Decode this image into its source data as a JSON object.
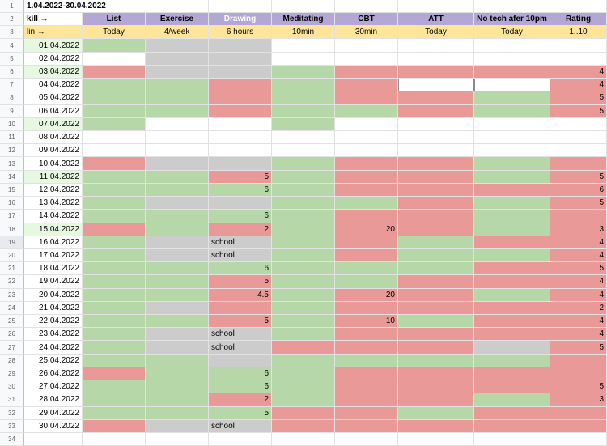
{
  "sheet": {
    "title": "1.04.2022-30.04.2022",
    "header_row": [
      "kill →",
      "List",
      "Exercise",
      "Drawing",
      "Meditating",
      "CBT",
      "ATT",
      "No tech afer 10pm",
      "Rating"
    ],
    "plan_row": [
      "lin →",
      "Today",
      "4/week",
      "6 hours",
      "10min",
      "30min",
      "Today",
      "Today",
      "1..10"
    ],
    "row_numbers": [
      "1",
      "2",
      "3",
      "4",
      "5",
      "6",
      "7",
      "8",
      "9",
      "10",
      "11",
      "12",
      "13",
      "14",
      "15",
      "16",
      "17",
      "18",
      "19",
      "20",
      "21",
      "22",
      "23",
      "24",
      "25",
      "26",
      "27",
      "28",
      "29",
      "30",
      "31",
      "32",
      "33",
      "34"
    ],
    "colors": {
      "green": "#b6d7a8",
      "red": "#ea9999",
      "gray": "#cccccc",
      "header_purple": "#b4a7d6",
      "plan_yellow": "#ffe599",
      "date_highlight": "#e6f8e0"
    },
    "rows": [
      {
        "date": "01.04.2022",
        "cells": [
          "G",
          "Y",
          "Y",
          "W",
          "W",
          "W",
          "W",
          "W"
        ],
        "values": [
          "",
          "",
          "",
          "",
          "",
          "",
          "",
          ""
        ]
      },
      {
        "date": "02.04.2022",
        "cells": [
          "W",
          "Y",
          "Y",
          "W",
          "W",
          "W",
          "W",
          "W"
        ],
        "values": [
          "",
          "",
          "",
          "",
          "",
          "",
          "",
          ""
        ]
      },
      {
        "date": "03.04.2022",
        "cells": [
          "R",
          "Y",
          "Y",
          "G",
          "R",
          "R",
          "R",
          "R"
        ],
        "values": [
          "",
          "",
          "",
          "",
          "",
          "",
          "",
          "4"
        ]
      },
      {
        "date": "04.04.2022",
        "cells": [
          "G",
          "G",
          "R",
          "G",
          "R",
          "W",
          "W",
          "R"
        ],
        "values": [
          "",
          "",
          "",
          "",
          "",
          "",
          "",
          "4"
        ]
      },
      {
        "date": "05.04.2022",
        "cells": [
          "G",
          "G",
          "R",
          "G",
          "R",
          "R",
          "G",
          "R"
        ],
        "values": [
          "",
          "",
          "",
          "",
          "",
          "",
          "",
          "5"
        ]
      },
      {
        "date": "06.04.2022",
        "cells": [
          "G",
          "G",
          "R",
          "G",
          "G",
          "R",
          "G",
          "R"
        ],
        "values": [
          "",
          "",
          "",
          "",
          "",
          "",
          "",
          "5"
        ]
      },
      {
        "date": "07.04.2022",
        "cells": [
          "G",
          "W",
          "W",
          "G",
          "W",
          "W",
          "W",
          "W"
        ],
        "values": [
          "",
          "",
          "",
          "",
          "",
          "",
          "",
          ""
        ]
      },
      {
        "date": "08.04.2022",
        "cells": [
          "W",
          "W",
          "W",
          "W",
          "W",
          "W",
          "W",
          "W"
        ],
        "values": [
          "",
          "",
          "",
          "",
          "",
          "",
          "",
          ""
        ]
      },
      {
        "date": "09.04.2022",
        "cells": [
          "W",
          "W",
          "W",
          "W",
          "W",
          "W",
          "W",
          "W"
        ],
        "values": [
          "",
          "",
          "",
          "",
          "",
          "",
          "",
          ""
        ]
      },
      {
        "date": "10.04.2022",
        "cells": [
          "R",
          "Y",
          "Y",
          "G",
          "R",
          "R",
          "G",
          "R"
        ],
        "values": [
          "",
          "",
          "",
          "",
          "",
          "",
          "",
          ""
        ]
      },
      {
        "date": "11.04.2022",
        "cells": [
          "G",
          "G",
          "R",
          "G",
          "R",
          "R",
          "G",
          "R"
        ],
        "values": [
          "",
          "",
          "5",
          "",
          "",
          "",
          "",
          "5"
        ]
      },
      {
        "date": "12.04.2022",
        "cells": [
          "G",
          "G",
          "G",
          "G",
          "R",
          "R",
          "R",
          "R"
        ],
        "values": [
          "",
          "",
          "6",
          "",
          "",
          "",
          "",
          "6"
        ]
      },
      {
        "date": "13.04.2022",
        "cells": [
          "G",
          "Y",
          "Y",
          "G",
          "G",
          "R",
          "G",
          "R"
        ],
        "values": [
          "",
          "",
          "",
          "",
          "",
          "",
          "",
          "5"
        ]
      },
      {
        "date": "14.04.2022",
        "cells": [
          "G",
          "G",
          "G",
          "G",
          "R",
          "R",
          "G",
          "R"
        ],
        "values": [
          "",
          "",
          "6",
          "",
          "",
          "",
          "",
          ""
        ]
      },
      {
        "date": "15.04.2022",
        "cells": [
          "R",
          "G",
          "R",
          "G",
          "R",
          "R",
          "G",
          "R"
        ],
        "values": [
          "",
          "",
          "2",
          "",
          "20",
          "",
          "",
          "3"
        ]
      },
      {
        "date": "16.04.2022",
        "cells": [
          "G",
          "Y",
          "Y",
          "G",
          "R",
          "G",
          "R",
          "R"
        ],
        "values": [
          "",
          "",
          "school",
          "",
          "",
          "",
          "",
          "4"
        ]
      },
      {
        "date": "17.04.2022",
        "cells": [
          "G",
          "Y",
          "Y",
          "G",
          "R",
          "G",
          "G",
          "R"
        ],
        "values": [
          "",
          "",
          "school",
          "",
          "",
          "",
          "",
          "4"
        ]
      },
      {
        "date": "18.04.2022",
        "cells": [
          "G",
          "G",
          "G",
          "G",
          "G",
          "G",
          "R",
          "R"
        ],
        "values": [
          "",
          "",
          "6",
          "",
          "",
          "",
          "",
          "5"
        ]
      },
      {
        "date": "19.04.2022",
        "cells": [
          "G",
          "G",
          "R",
          "G",
          "G",
          "R",
          "R",
          "R"
        ],
        "values": [
          "",
          "",
          "5",
          "",
          "",
          "",
          "",
          "4"
        ]
      },
      {
        "date": "20.04.2022",
        "cells": [
          "G",
          "G",
          "R",
          "G",
          "R",
          "R",
          "G",
          "R"
        ],
        "values": [
          "",
          "",
          "4.5",
          "",
          "20",
          "",
          "",
          "4"
        ]
      },
      {
        "date": "21.04.2022",
        "cells": [
          "G",
          "Y",
          "R",
          "G",
          "R",
          "R",
          "R",
          "R"
        ],
        "values": [
          "",
          "",
          "",
          "",
          "",
          "",
          "",
          "2"
        ]
      },
      {
        "date": "22.04.2022",
        "cells": [
          "G",
          "G",
          "R",
          "G",
          "R",
          "G",
          "R",
          "R"
        ],
        "values": [
          "",
          "",
          "5",
          "",
          "10",
          "",
          "",
          "4"
        ]
      },
      {
        "date": "23.04.2022",
        "cells": [
          "G",
          "Y",
          "Y",
          "G",
          "R",
          "R",
          "R",
          "R"
        ],
        "values": [
          "",
          "",
          "school",
          "",
          "",
          "",
          "",
          "4"
        ]
      },
      {
        "date": "24.04.2022",
        "cells": [
          "G",
          "Y",
          "Y",
          "R",
          "R",
          "R",
          "Y",
          "R"
        ],
        "values": [
          "",
          "",
          "school",
          "",
          "",
          "",
          "",
          "5"
        ]
      },
      {
        "date": "25.04.2022",
        "cells": [
          "G",
          "G",
          "Y",
          "G",
          "G",
          "G",
          "G",
          "R"
        ],
        "values": [
          "",
          "",
          "",
          "",
          "",
          "",
          "",
          ""
        ]
      },
      {
        "date": "26.04.2022",
        "cells": [
          "R",
          "G",
          "G",
          "G",
          "R",
          "R",
          "R",
          "R"
        ],
        "values": [
          "",
          "",
          "6",
          "",
          "",
          "",
          "",
          ""
        ]
      },
      {
        "date": "27.04.2022",
        "cells": [
          "G",
          "G",
          "G",
          "G",
          "R",
          "R",
          "R",
          "R"
        ],
        "values": [
          "",
          "",
          "6",
          "",
          "",
          "",
          "",
          "5"
        ]
      },
      {
        "date": "28.04.2022",
        "cells": [
          "G",
          "G",
          "R",
          "G",
          "R",
          "R",
          "G",
          "R"
        ],
        "values": [
          "",
          "",
          "2",
          "",
          "",
          "",
          "",
          "3"
        ]
      },
      {
        "date": "29.04.2022",
        "cells": [
          "G",
          "G",
          "G",
          "R",
          "R",
          "G",
          "R",
          "R"
        ],
        "values": [
          "",
          "",
          "5",
          "",
          "",
          "",
          "",
          ""
        ]
      },
      {
        "date": "30.04.2022",
        "cells": [
          "R",
          "Y",
          "Y",
          "R",
          "R",
          "R",
          "R",
          "R"
        ],
        "values": [
          "",
          "",
          "school",
          "",
          "",
          "",
          "",
          ""
        ]
      }
    ],
    "highlighted_dates": [
      0,
      2,
      6,
      10,
      14
    ],
    "selected_row_header": 18
  }
}
